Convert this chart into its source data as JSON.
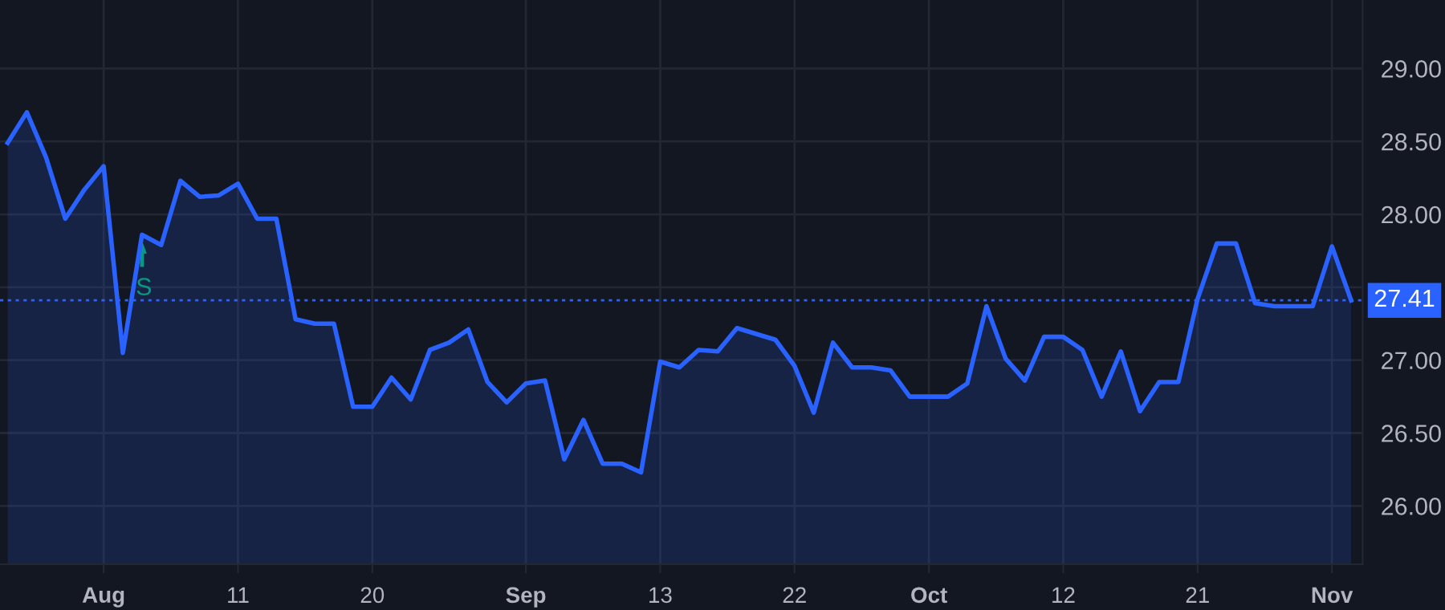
{
  "chart_data": {
    "type": "area",
    "categories": [
      null,
      null,
      null,
      null,
      null,
      "Aug",
      null,
      null,
      null,
      null,
      null,
      null,
      "11",
      null,
      null,
      null,
      null,
      null,
      null,
      "20",
      null,
      null,
      null,
      null,
      null,
      null,
      null,
      "Sep",
      null,
      null,
      null,
      null,
      null,
      null,
      "13",
      null,
      null,
      null,
      null,
      null,
      null,
      "22",
      null,
      null,
      null,
      null,
      null,
      null,
      "Oct",
      null,
      null,
      null,
      null,
      null,
      null,
      "12",
      null,
      null,
      null,
      null,
      null,
      null,
      "21",
      null,
      null,
      null,
      null,
      null,
      null,
      "Nov",
      null
    ],
    "series": [
      {
        "color": "#2962ff",
        "values": [
          28.49,
          28.7,
          28.39,
          27.97,
          28.17,
          28.33,
          27.05,
          27.86,
          27.79,
          28.23,
          28.12,
          28.13,
          28.21,
          27.97,
          27.97,
          27.28,
          27.25,
          27.25,
          26.68,
          26.68,
          26.88,
          26.73,
          27.07,
          27.12,
          27.21,
          26.85,
          26.71,
          26.84,
          26.86,
          26.32,
          26.59,
          26.29,
          26.29,
          26.23,
          26.99,
          26.95,
          27.07,
          27.06,
          27.22,
          27.18,
          27.14,
          26.96,
          26.64,
          27.12,
          26.95,
          26.95,
          26.93,
          26.75,
          26.75,
          26.75,
          26.84,
          27.37,
          27.01,
          26.86,
          27.16,
          27.16,
          27.07,
          26.75,
          27.06,
          26.65,
          26.85,
          26.85,
          27.42,
          27.8,
          27.8,
          27.39,
          27.37,
          27.37,
          27.37,
          27.78,
          27.41
        ]
      }
    ],
    "ylim": [
      25.6,
      29.47
    ],
    "yticks": [
      {
        "value": 26,
        "label": "26.00"
      },
      {
        "value": 26.5,
        "label": "26.50"
      },
      {
        "value": 27,
        "label": "27.00"
      },
      {
        "value": 27.5,
        "label": null
      },
      {
        "value": 28,
        "label": "28.00"
      },
      {
        "value": 28.5,
        "label": "28.50"
      },
      {
        "value": 29,
        "label": "29.00"
      }
    ],
    "grid": true,
    "ref_lines": [
      {
        "axis": "y",
        "value": 27.41,
        "label": "27.41",
        "color": "#2962ff",
        "line_style": "dotted"
      }
    ],
    "annotations": [
      {
        "text": "S",
        "y": 27.86
      }
    ]
  }
}
